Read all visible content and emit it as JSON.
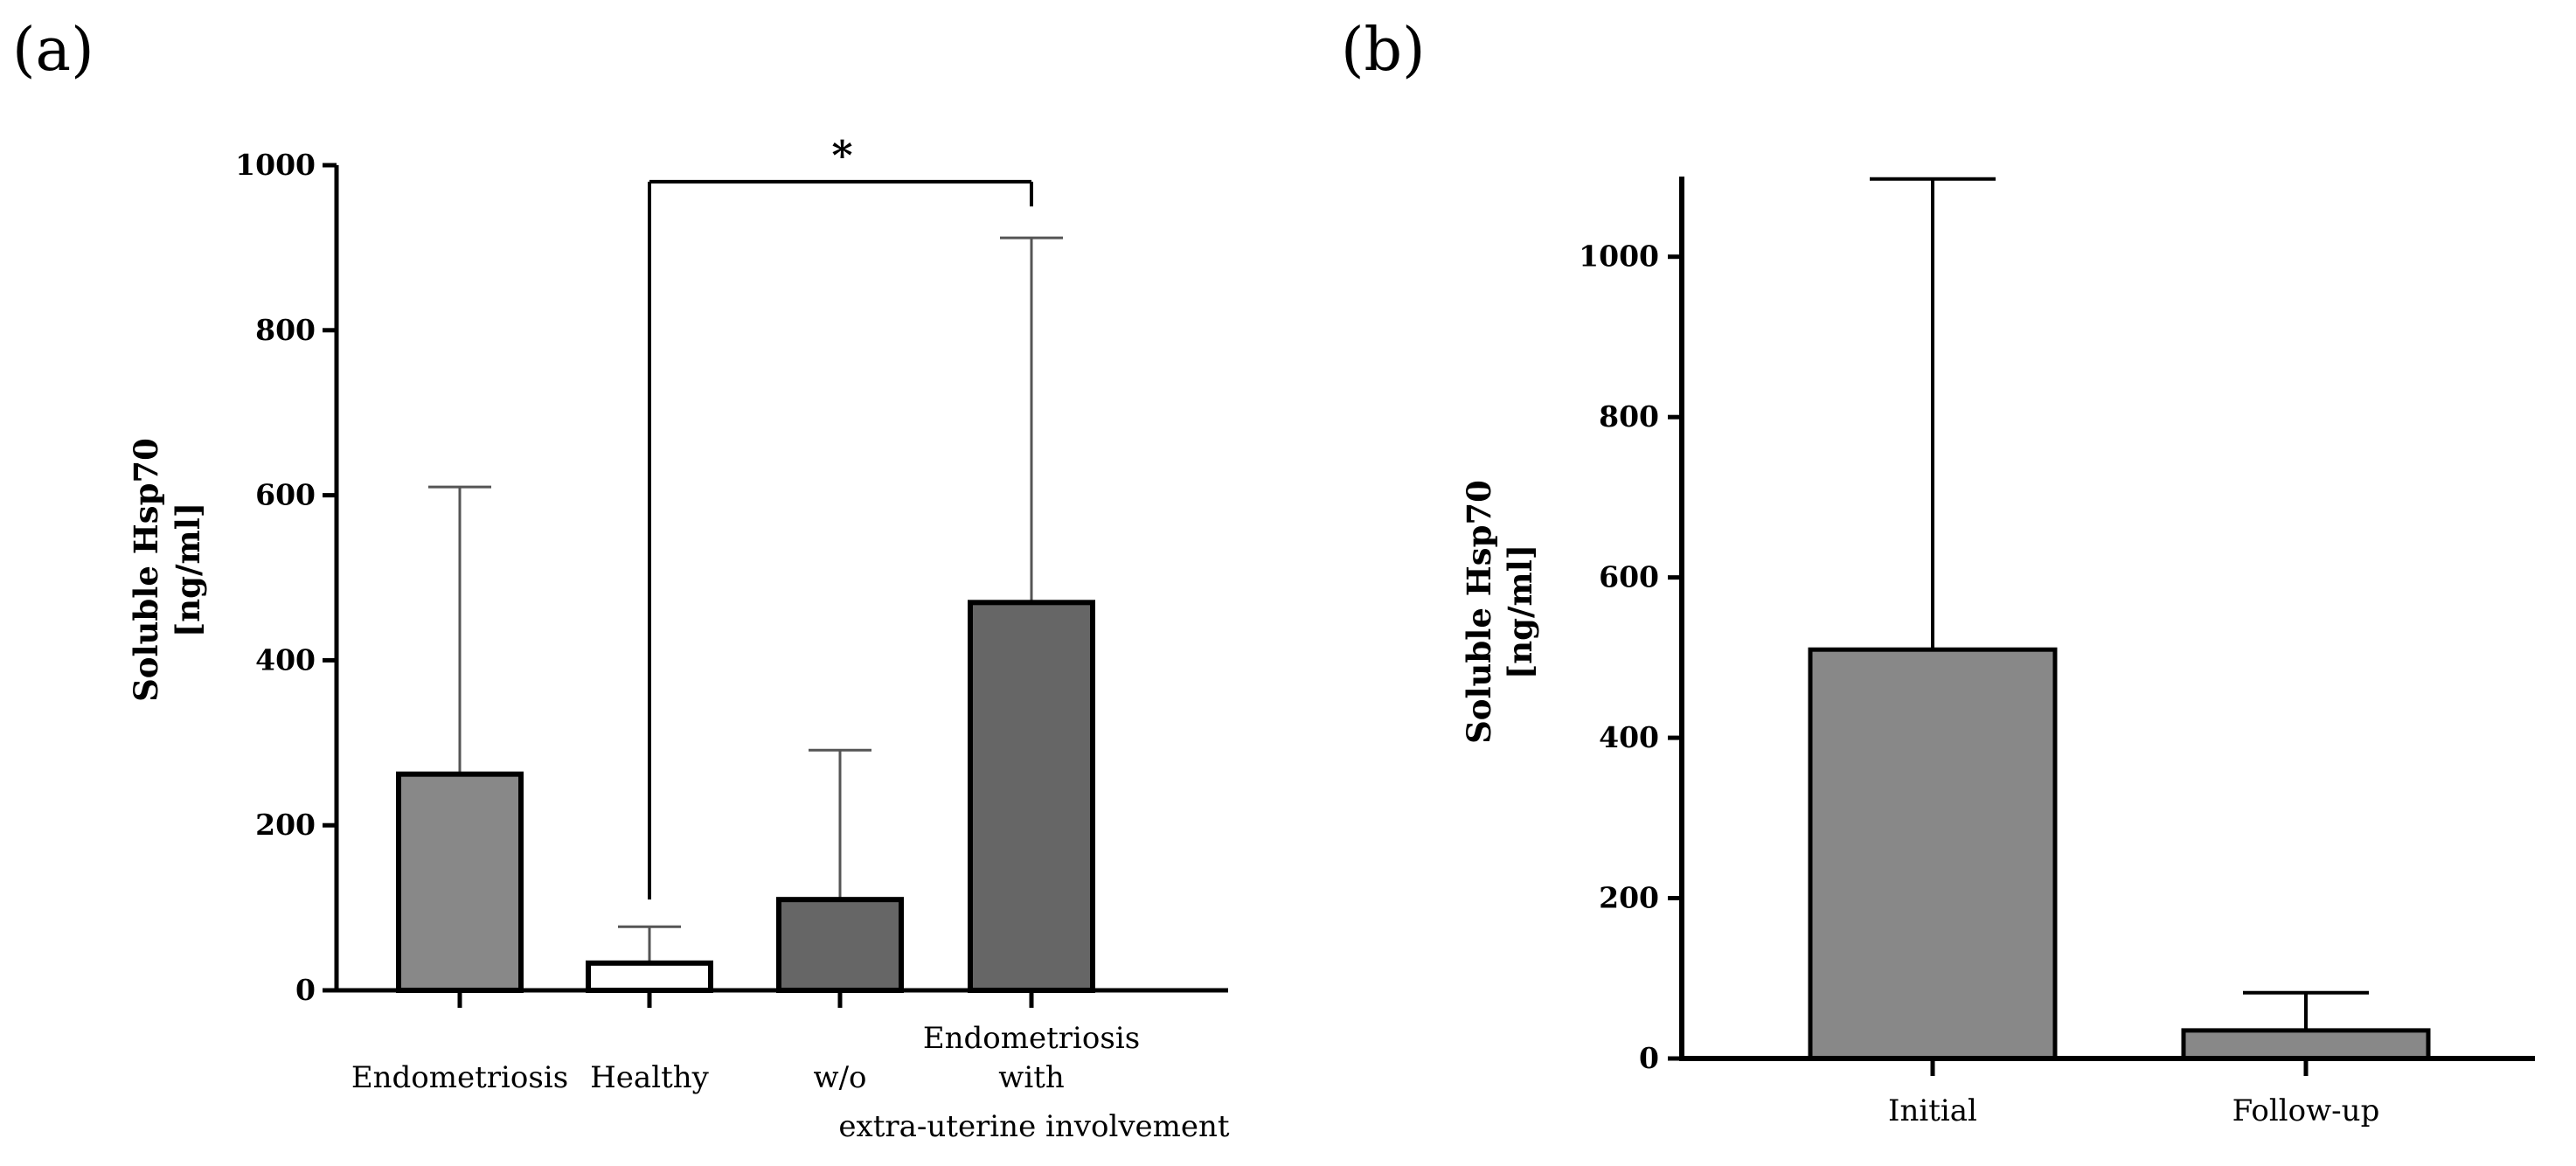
{
  "panel_a_label": "(a)",
  "panel_b_label": "(b)",
  "chart_data": [
    {
      "id": "a",
      "type": "bar",
      "ylabel_line1": "Soluble  Hsp70",
      "ylabel_line2": "[ng/ml]",
      "ylim": [
        0,
        1000
      ],
      "yticks": [
        "0",
        "200",
        "400",
        "600",
        "800",
        "1000"
      ],
      "bars": [
        {
          "key": "endo",
          "value": 262,
          "error_upper": 610,
          "fill": "#888888"
        },
        {
          "key": "healthy",
          "value": 33,
          "error_upper": 77,
          "fill": "#ffffff"
        },
        {
          "key": "wo",
          "value": 110,
          "error_upper": 291,
          "fill": "#666666"
        },
        {
          "key": "with",
          "value": 470,
          "error_upper": 912,
          "fill": "#666666"
        }
      ],
      "category_labels": {
        "endometriosis": "Endometriosis",
        "healthy": "Healthy",
        "wo": "w/o",
        "endometriosis_top": "Endometriosis",
        "with": "with",
        "extra": "extra-uterine involvement"
      },
      "significance": {
        "from": "healthy",
        "to": "with",
        "bracket_value": 980,
        "left_leg_bottom": 110,
        "right_leg_bottom": 950,
        "label": "*"
      }
    },
    {
      "id": "b",
      "type": "bar",
      "ylabel_line1": "Soluble  Hsp70",
      "ylabel_line2": "[ng/ml]",
      "ylim": [
        0,
        1100
      ],
      "yticks": [
        "0",
        "200",
        "400",
        "600",
        "800",
        "1000"
      ],
      "categories": [
        "Initial",
        "Follow-up"
      ],
      "bars": [
        {
          "key": "initial",
          "value": 510,
          "error_upper": 1097,
          "fill": "#888888"
        },
        {
          "key": "followup",
          "value": 35,
          "error_upper": 82,
          "fill": "#888888"
        }
      ]
    }
  ]
}
